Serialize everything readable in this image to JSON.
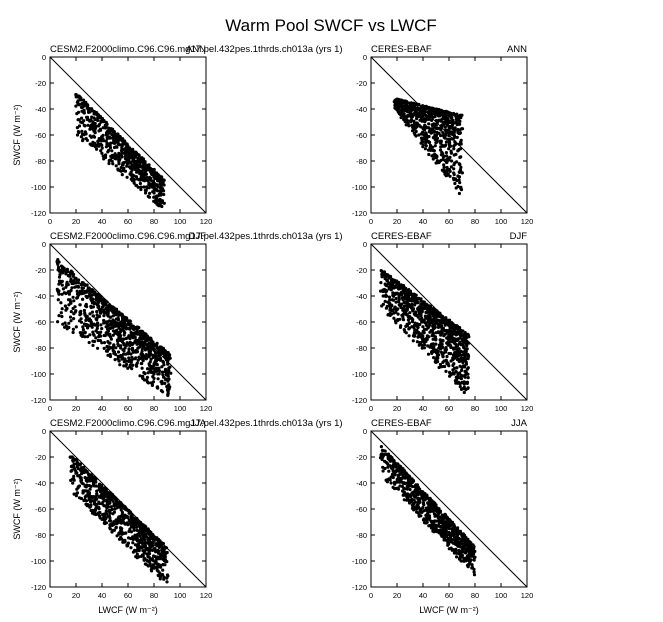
{
  "figure": {
    "title": "Warm Pool SWCF vs LWCF"
  },
  "chart_data": [
    {
      "type": "scatter",
      "model": "CESM2.F2000climo.C96.C96.mg17.pel.432pes.1thrds.ch013a (yrs 1)",
      "season": "ANN",
      "xlabel": "",
      "ylabel": "SWCF (W m⁻²)",
      "xlim": [
        0,
        120
      ],
      "ylim": [
        -120,
        0
      ],
      "xticks": [
        0,
        20,
        40,
        60,
        80,
        100,
        120
      ],
      "yticks": [
        0,
        -20,
        -40,
        -60,
        -80,
        -100,
        -120
      ],
      "diagonal_line": [
        [
          0,
          0
        ],
        [
          120,
          -120
        ]
      ],
      "cloud": {
        "n": 650,
        "x": [
          20,
          88
        ],
        "y_top": [
          -28,
          -95
        ],
        "y_bottom": [
          -60,
          -118
        ],
        "seed": 11
      },
      "sample_points": [
        [
          22,
          -30
        ],
        [
          24,
          -33
        ],
        [
          30,
          -42
        ],
        [
          38,
          -52
        ],
        [
          45,
          -62
        ],
        [
          55,
          -72
        ],
        [
          65,
          -83
        ],
        [
          75,
          -95
        ],
        [
          82,
          -107
        ],
        [
          86,
          -115
        ]
      ]
    },
    {
      "type": "scatter",
      "model": "CERES-EBAF",
      "season": "ANN",
      "xlabel": "",
      "ylabel": "",
      "xlim": [
        0,
        120
      ],
      "ylim": [
        -120,
        0
      ],
      "xticks": [
        0,
        20,
        40,
        60,
        80,
        100,
        120
      ],
      "yticks": [
        0,
        -20,
        -40,
        -60,
        -80,
        -100,
        -120
      ],
      "diagonal_line": [
        [
          0,
          0
        ],
        [
          120,
          -120
        ]
      ],
      "cloud": {
        "n": 700,
        "x": [
          18,
          70
        ],
        "y_top": [
          -32,
          -45
        ],
        "y_bottom": [
          -40,
          -108
        ],
        "seed": 23
      },
      "sample_points": [
        [
          20,
          -35
        ],
        [
          25,
          -38
        ],
        [
          32,
          -45
        ],
        [
          40,
          -55
        ],
        [
          48,
          -62
        ],
        [
          55,
          -68
        ],
        [
          62,
          -80
        ],
        [
          66,
          -95
        ],
        [
          68,
          -105
        ]
      ]
    },
    {
      "type": "scatter",
      "model": "CESM2.F2000climo.C96.C96.mg17.pel.432pes.1thrds.ch013a (yrs 1)",
      "season": "DJF",
      "xlabel": "",
      "ylabel": "SWCF (W m⁻²)",
      "xlim": [
        0,
        120
      ],
      "ylim": [
        -120,
        0
      ],
      "xticks": [
        0,
        20,
        40,
        60,
        80,
        100,
        120
      ],
      "yticks": [
        0,
        -20,
        -40,
        -60,
        -80,
        -100,
        -120
      ],
      "diagonal_line": [
        [
          0,
          0
        ],
        [
          120,
          -120
        ]
      ],
      "cloud": {
        "n": 950,
        "x": [
          5,
          92
        ],
        "y_top": [
          -12,
          -85
        ],
        "y_bottom": [
          -60,
          -118
        ],
        "seed": 37
      },
      "sample_points": [
        [
          6,
          -12
        ],
        [
          10,
          -20
        ],
        [
          20,
          -30
        ],
        [
          30,
          -40
        ],
        [
          40,
          -50
        ],
        [
          50,
          -62
        ],
        [
          60,
          -72
        ],
        [
          70,
          -85
        ],
        [
          80,
          -100
        ],
        [
          90,
          -110
        ]
      ]
    },
    {
      "type": "scatter",
      "model": "CERES-EBAF",
      "season": "DJF",
      "xlabel": "",
      "ylabel": "",
      "xlim": [
        0,
        120
      ],
      "ylim": [
        -120,
        0
      ],
      "xticks": [
        0,
        20,
        40,
        60,
        80,
        100,
        120
      ],
      "yticks": [
        0,
        -20,
        -40,
        -60,
        -80,
        -100,
        -120
      ],
      "diagonal_line": [
        [
          0,
          0
        ],
        [
          120,
          -120
        ]
      ],
      "cloud": {
        "n": 900,
        "x": [
          8,
          75
        ],
        "y_top": [
          -20,
          -70
        ],
        "y_bottom": [
          -50,
          -118
        ],
        "seed": 49
      },
      "sample_points": [
        [
          10,
          -22
        ],
        [
          15,
          -25
        ],
        [
          25,
          -32
        ],
        [
          35,
          -42
        ],
        [
          45,
          -55
        ],
        [
          55,
          -65
        ],
        [
          65,
          -80
        ],
        [
          70,
          -95
        ],
        [
          73,
          -112
        ]
      ]
    },
    {
      "type": "scatter",
      "model": "CESM2.F2000climo.C96.C96.mg17.pel.432pes.1thrds.ch013a (yrs 1)",
      "season": "JJA",
      "xlabel": "LWCF (W m⁻²)",
      "ylabel": "SWCF (W m⁻²)",
      "xlim": [
        0,
        120
      ],
      "ylim": [
        -120,
        0
      ],
      "xticks": [
        0,
        20,
        40,
        60,
        80,
        100,
        120
      ],
      "yticks": [
        0,
        -20,
        -40,
        -60,
        -80,
        -100,
        -120
      ],
      "diagonal_line": [
        [
          0,
          0
        ],
        [
          120,
          -120
        ]
      ],
      "cloud": {
        "n": 800,
        "x": [
          15,
          90
        ],
        "y_top": [
          -18,
          -90
        ],
        "y_bottom": [
          -45,
          -120
        ],
        "seed": 61
      },
      "sample_points": [
        [
          16,
          -20
        ],
        [
          20,
          -22
        ],
        [
          30,
          -35
        ],
        [
          40,
          -45
        ],
        [
          50,
          -60
        ],
        [
          60,
          -72
        ],
        [
          70,
          -85
        ],
        [
          80,
          -100
        ],
        [
          85,
          -112
        ]
      ]
    },
    {
      "type": "scatter",
      "model": "CERES-EBAF",
      "season": "JJA",
      "xlabel": "LWCF (W m⁻²)",
      "ylabel": "",
      "xlim": [
        0,
        120
      ],
      "ylim": [
        -120,
        0
      ],
      "xticks": [
        0,
        20,
        40,
        60,
        80,
        100,
        120
      ],
      "yticks": [
        0,
        -20,
        -40,
        -60,
        -80,
        -100,
        -120
      ],
      "diagonal_line": [
        [
          0,
          0
        ],
        [
          120,
          -120
        ]
      ],
      "cloud": {
        "n": 750,
        "x": [
          8,
          80
        ],
        "y_top": [
          -12,
          -90
        ],
        "y_bottom": [
          -35,
          -112
        ],
        "seed": 73
      },
      "sample_points": [
        [
          8,
          -12
        ],
        [
          12,
          -18
        ],
        [
          20,
          -28
        ],
        [
          30,
          -40
        ],
        [
          40,
          -52
        ],
        [
          50,
          -65
        ],
        [
          60,
          -78
        ],
        [
          70,
          -92
        ],
        [
          78,
          -105
        ]
      ]
    }
  ]
}
